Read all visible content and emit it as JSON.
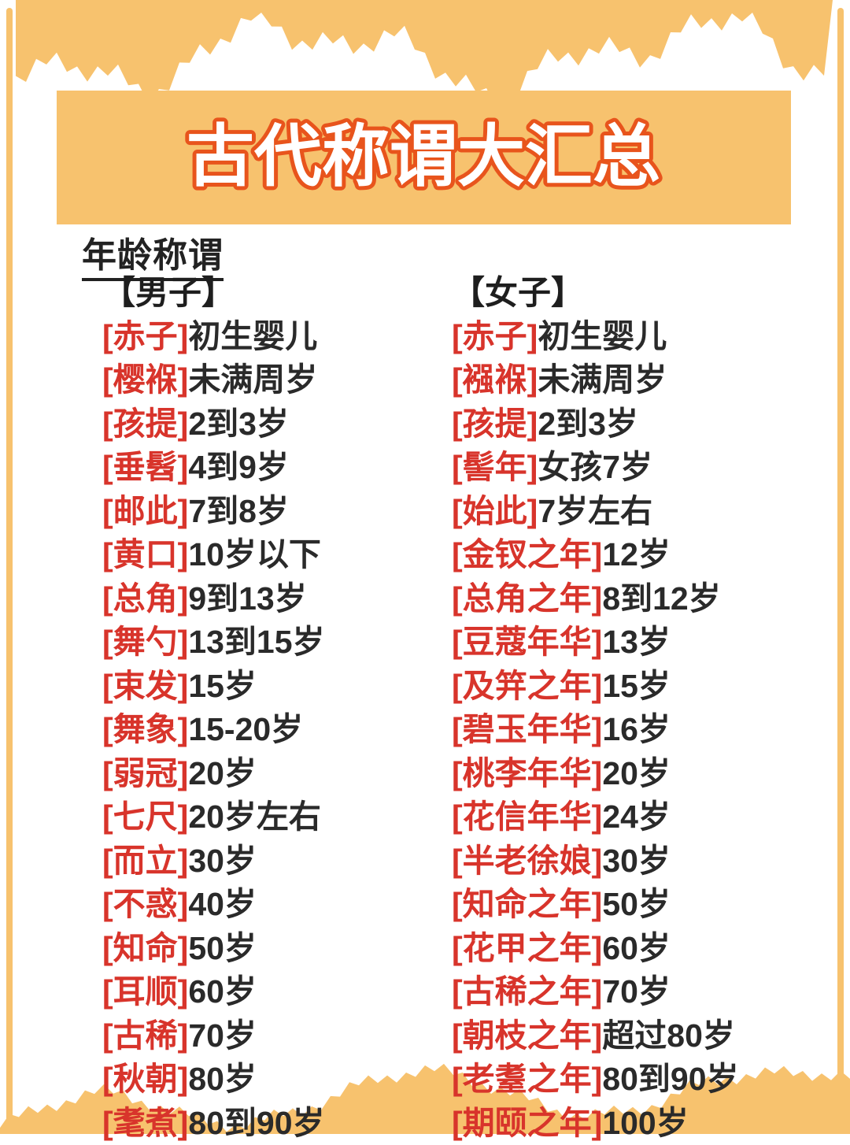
{
  "page": {
    "title": "古代称谓大汇总",
    "section_title": "年龄称谓",
    "colors": {
      "orange": "#F7C26E",
      "title_fill": "#FFFFFF",
      "title_stroke": "#E8541C",
      "accent_red": "#D8342B",
      "text_black": "#2A2A2A"
    }
  },
  "columns": [
    {
      "header": "【男子】",
      "entries": [
        {
          "term": "[赤子]",
          "desc": "初生婴儿"
        },
        {
          "term": "[樱褓]",
          "desc": "未满周岁"
        },
        {
          "term": "[孩提]",
          "desc": "2到3岁"
        },
        {
          "term": "[垂髫]",
          "desc": "4到9岁"
        },
        {
          "term": "[邮此]",
          "desc": "7到8岁"
        },
        {
          "term": "[黄口]",
          "desc": "10岁以下"
        },
        {
          "term": "[总角]",
          "desc": "9到13岁"
        },
        {
          "term": "[舞勺]",
          "desc": "13到15岁"
        },
        {
          "term": "[束发]",
          "desc": "15岁"
        },
        {
          "term": "[舞象]",
          "desc": "15-20岁"
        },
        {
          "term": "[弱冠]",
          "desc": "20岁"
        },
        {
          "term": "[七尺]",
          "desc": "20岁左右"
        },
        {
          "term": "[而立]",
          "desc": "30岁"
        },
        {
          "term": "[不惑]",
          "desc": "40岁"
        },
        {
          "term": "[知命]",
          "desc": "50岁"
        },
        {
          "term": "[耳顺]",
          "desc": "60岁"
        },
        {
          "term": "[古稀]",
          "desc": "70岁"
        },
        {
          "term": "[秋朝]",
          "desc": "80岁"
        },
        {
          "term": "[耄煮]",
          "desc": "80到90岁"
        }
      ]
    },
    {
      "header": "【女子】",
      "entries": [
        {
          "term": "[赤子]",
          "desc": "初生婴儿"
        },
        {
          "term": "[襁褓]",
          "desc": "未满周岁"
        },
        {
          "term": "[孩提]",
          "desc": "2到3岁"
        },
        {
          "term": "[髻年]",
          "desc": "女孩7岁"
        },
        {
          "term": "[始此]",
          "desc": "7岁左右"
        },
        {
          "term": "[金钗之年]",
          "desc": "12岁"
        },
        {
          "term": "[总角之年]",
          "desc": "8到12岁"
        },
        {
          "term": "[豆蔻年华]",
          "desc": "13岁"
        },
        {
          "term": "[及笄之年]",
          "desc": "15岁"
        },
        {
          "term": "[碧玉年华]",
          "desc": "16岁"
        },
        {
          "term": "[桃李年华]",
          "desc": "20岁"
        },
        {
          "term": "[花信年华]",
          "desc": "24岁"
        },
        {
          "term": "[半老徐娘]",
          "desc": "30岁"
        },
        {
          "term": "[知命之年]",
          "desc": "50岁"
        },
        {
          "term": "[花甲之年]",
          "desc": "60岁"
        },
        {
          "term": "[古稀之年]",
          "desc": "70岁"
        },
        {
          "term": "[朝枝之年]",
          "desc": "超过80岁"
        },
        {
          "term": "[老耋之年]",
          "desc": "80到90岁"
        },
        {
          "term": "[期颐之年]",
          "desc": "100岁"
        }
      ]
    }
  ]
}
